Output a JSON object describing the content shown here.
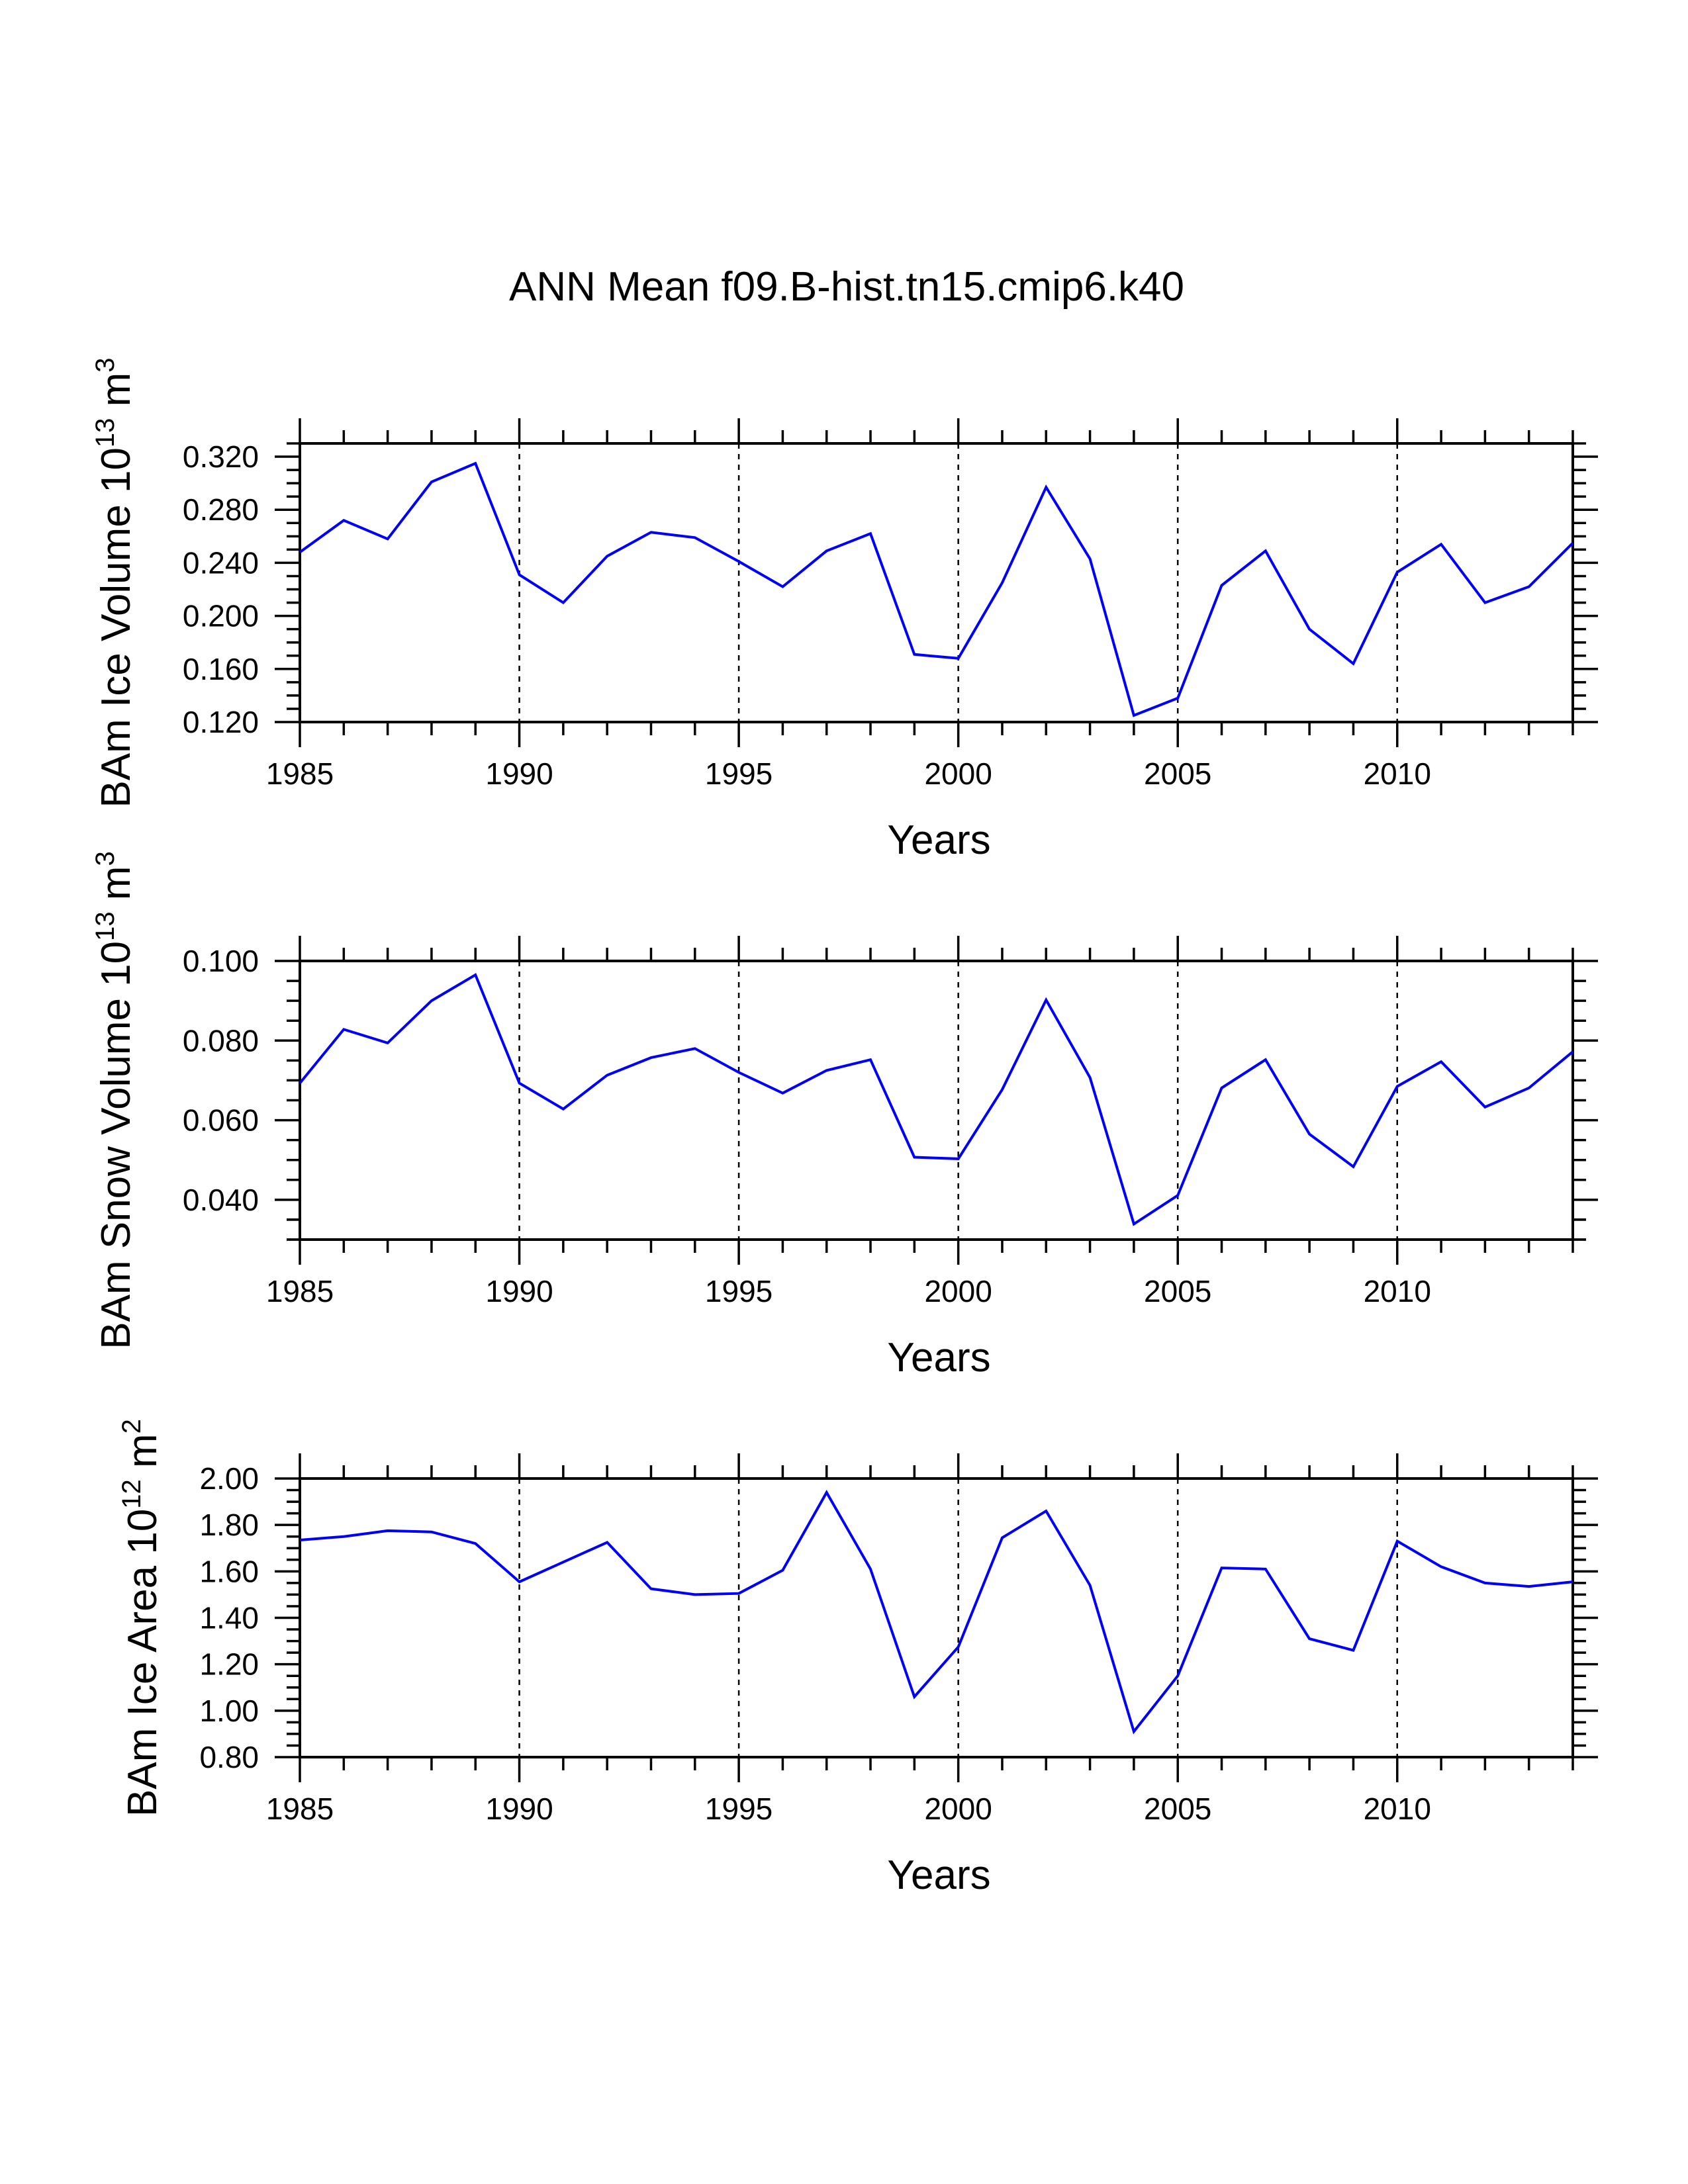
{
  "title": "ANN Mean f09.B-hist.tn15.cmip6.k40",
  "colors": {
    "line": "#0000ff",
    "axis": "#000000",
    "grid": "#000000",
    "background": "#ffffff"
  },
  "chart_data": [
    {
      "type": "line",
      "ylabel": {
        "main": "BAm Ice Volume 10",
        "exp": "13",
        "unit": " m",
        "unit_exp": "3"
      },
      "xlabel": "Years",
      "xlim": [
        1985,
        2014
      ],
      "ylim": [
        0.12,
        0.33
      ],
      "yticks": [
        "0.120",
        "0.160",
        "0.200",
        "0.240",
        "0.280",
        "0.320"
      ],
      "xticks": [
        "1985",
        "1990",
        "1995",
        "2000",
        "2005",
        "2010"
      ],
      "x": [
        1985,
        1986,
        1987,
        1988,
        1989,
        1990,
        1991,
        1992,
        1993,
        1994,
        1995,
        1996,
        1997,
        1998,
        1999,
        2000,
        2001,
        2002,
        2003,
        2004,
        2005,
        2006,
        2007,
        2008,
        2009,
        2010,
        2011,
        2012,
        2013,
        2014
      ],
      "values": [
        0.248,
        0.272,
        0.258,
        0.301,
        0.315,
        0.231,
        0.21,
        0.245,
        0.263,
        0.259,
        0.241,
        0.222,
        0.249,
        0.262,
        0.171,
        0.168,
        0.225,
        0.297,
        0.243,
        0.125,
        0.138,
        0.223,
        0.249,
        0.19,
        0.164,
        0.233,
        0.254,
        0.21,
        0.222,
        0.255
      ]
    },
    {
      "type": "line",
      "ylabel": {
        "main": "BAm Snow Volume 10",
        "exp": "13",
        "unit": " m",
        "unit_exp": "3"
      },
      "xlabel": "Years",
      "xlim": [
        1985,
        2014
      ],
      "ylim": [
        0.03,
        0.1
      ],
      "yticks": [
        "0.040",
        "0.060",
        "0.080",
        "0.100"
      ],
      "xticks": [
        "1985",
        "1990",
        "1995",
        "2000",
        "2005",
        "2010"
      ],
      "x": [
        1985,
        1986,
        1987,
        1988,
        1989,
        1990,
        1991,
        1992,
        1993,
        1994,
        1995,
        1996,
        1997,
        1998,
        1999,
        2000,
        2001,
        2002,
        2003,
        2004,
        2005,
        2006,
        2007,
        2008,
        2009,
        2010,
        2011,
        2012,
        2013,
        2014
      ],
      "values": [
        0.0693,
        0.0828,
        0.0794,
        0.09,
        0.0965,
        0.0693,
        0.0628,
        0.0713,
        0.0757,
        0.078,
        0.072,
        0.0668,
        0.0725,
        0.0752,
        0.0507,
        0.0503,
        0.0677,
        0.0902,
        0.0707,
        0.0339,
        0.0411,
        0.0681,
        0.0752,
        0.0565,
        0.0483,
        0.0685,
        0.0747,
        0.0633,
        0.0681,
        0.0772
      ]
    },
    {
      "type": "line",
      "ylabel": {
        "main": "BAm Ice Area 10",
        "exp": "12",
        "unit": " m",
        "unit_exp": "2"
      },
      "xlabel": "Years",
      "xlim": [
        1985,
        2014
      ],
      "ylim": [
        0.8,
        2.0
      ],
      "yticks": [
        "0.80",
        "1.00",
        "1.20",
        "1.40",
        "1.60",
        "1.80",
        "2.00"
      ],
      "xticks": [
        "1985",
        "1990",
        "1995",
        "2000",
        "2005",
        "2010"
      ],
      "x": [
        1985,
        1986,
        1987,
        1988,
        1989,
        1990,
        1991,
        1992,
        1993,
        1994,
        1995,
        1996,
        1997,
        1998,
        1999,
        2000,
        2001,
        2002,
        2003,
        2004,
        2005,
        2006,
        2007,
        2008,
        2009,
        2010,
        2011,
        2012,
        2013,
        2014
      ],
      "values": [
        1.735,
        1.75,
        1.775,
        1.77,
        1.72,
        1.555,
        1.64,
        1.725,
        1.525,
        1.5,
        1.505,
        1.605,
        1.94,
        1.61,
        1.06,
        1.275,
        1.745,
        1.86,
        1.54,
        0.91,
        1.15,
        1.615,
        1.61,
        1.31,
        1.26,
        1.73,
        1.62,
        1.55,
        1.535,
        1.555
      ]
    }
  ]
}
